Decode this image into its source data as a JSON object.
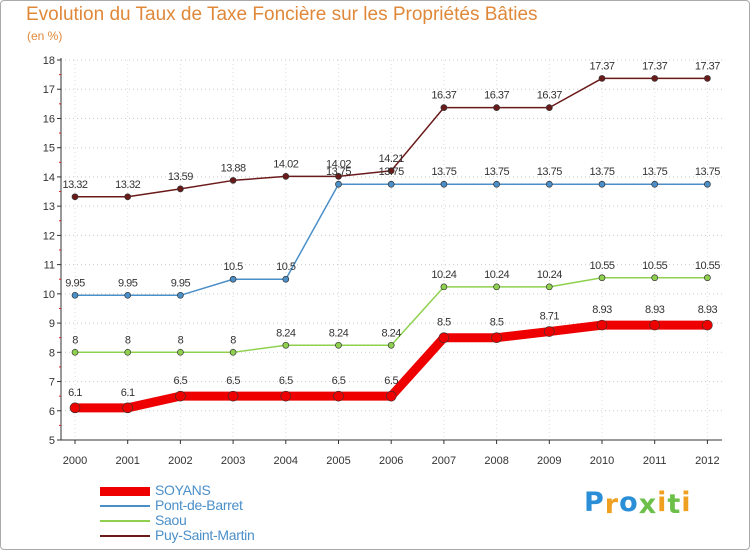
{
  "chart_data": {
    "type": "line",
    "title": "Evolution du Taux de Taxe Foncière sur les Propriétés Bâties",
    "unit_label": "(en %)",
    "xlabel": "",
    "ylabel": "(en %)",
    "categories": [
      "2000",
      "2001",
      "2002",
      "2003",
      "2004",
      "2005",
      "2006",
      "2007",
      "2008",
      "2009",
      "2010",
      "2011",
      "2012"
    ],
    "ylim": [
      5,
      18
    ],
    "yticks": [
      5,
      6,
      7,
      8,
      9,
      10,
      11,
      12,
      13,
      14,
      15,
      16,
      17,
      18
    ],
    "series": [
      {
        "name": "Puy-Saint-Martin",
        "color": "#6b1a1a",
        "values": [
          13.32,
          13.32,
          13.59,
          13.88,
          14.02,
          14.02,
          14.21,
          16.37,
          16.37,
          16.37,
          17.37,
          17.37,
          17.37
        ],
        "labels": [
          "13.32",
          "13.32",
          "13.59",
          "13.88",
          "14.02",
          "14.02",
          "14.21",
          "16.37",
          "16.37",
          "16.37",
          "17.37",
          "17.37",
          "17.37"
        ]
      },
      {
        "name": "Pont-de-Barret",
        "color": "#4b8fc9",
        "values": [
          9.95,
          9.95,
          9.95,
          10.5,
          10.5,
          13.75,
          13.75,
          13.75,
          13.75,
          13.75,
          13.75,
          13.75,
          13.75
        ],
        "labels": [
          "9.95",
          "9.95",
          "9.95",
          "10.5",
          "10.5",
          "13.75",
          "13.75",
          "13.75",
          "13.75",
          "13.75",
          "13.75",
          "13.75",
          "13.75"
        ]
      },
      {
        "name": "Saou",
        "color": "#8fd14f",
        "values": [
          8,
          8,
          8,
          8,
          8.24,
          8.24,
          8.24,
          10.24,
          10.24,
          10.24,
          10.55,
          10.55,
          10.55
        ],
        "labels": [
          "8",
          "8",
          "8",
          "8",
          "8.24",
          "8.24",
          "8.24",
          "10.24",
          "10.24",
          "10.24",
          "10.55",
          "10.55",
          "10.55"
        ]
      },
      {
        "name": "SOYANS",
        "color": "#ee0000",
        "values": [
          6.1,
          6.1,
          6.5,
          6.5,
          6.5,
          6.5,
          6.5,
          8.5,
          8.5,
          8.71,
          8.93,
          8.93,
          8.93
        ],
        "labels": [
          "6.1",
          "6.1",
          "6.5",
          "6.5",
          "6.5",
          "6.5",
          "6.5",
          "8.5",
          "8.5",
          "8.71",
          "8.93",
          "8.93",
          "8.93"
        ]
      }
    ],
    "legend": [
      {
        "name": "SOYANS",
        "color": "#ee0000"
      },
      {
        "name": "Pont-de-Barret",
        "color": "#4b8fc9"
      },
      {
        "name": "Saou",
        "color": "#8fd14f"
      },
      {
        "name": "Puy-Saint-Martin",
        "color": "#6b1a1a"
      }
    ],
    "legend_position": "bottom-left"
  },
  "brand": {
    "letters": [
      "P",
      "r",
      "o",
      "x",
      "i",
      "t",
      "i"
    ],
    "colors": [
      "#2a8fd6",
      "#f0a020",
      "#2a8fd6",
      "#6cc04a",
      "#f0a020",
      "#6cc04a",
      "#f0a020"
    ]
  }
}
